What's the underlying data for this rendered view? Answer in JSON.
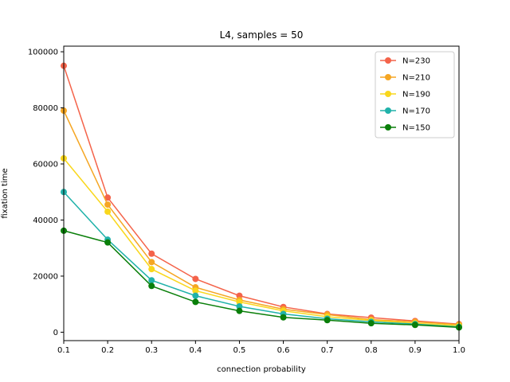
{
  "chart_data": {
    "type": "line",
    "title": "L4, samples = 50",
    "xlabel": "connection probability",
    "ylabel": "fixation time",
    "x": [
      0.1,
      0.2,
      0.3,
      0.4,
      0.5,
      0.6,
      0.7,
      0.8,
      0.9,
      1.0
    ],
    "xlim": [
      0.1,
      1.0
    ],
    "ylim": [
      -3000,
      102000
    ],
    "xticks": [
      "0.1",
      "0.2",
      "0.3",
      "0.4",
      "0.5",
      "0.6",
      "0.7",
      "0.8",
      "0.9",
      "1.0"
    ],
    "yticks": [
      "0",
      "20000",
      "40000",
      "60000",
      "80000",
      "100000"
    ],
    "ytick_values": [
      0,
      20000,
      40000,
      60000,
      80000,
      100000
    ],
    "grid": false,
    "legend_position": "top-right",
    "series": [
      {
        "name": "N=230",
        "color": "#f4634a",
        "values": [
          95000,
          48000,
          28000,
          19000,
          13000,
          9000,
          6500,
          5200,
          4000,
          2900
        ]
      },
      {
        "name": "N=210",
        "color": "#f5a623",
        "values": [
          79000,
          45500,
          25000,
          16000,
          11500,
          8200,
          6300,
          4500,
          3700,
          2700
        ]
      },
      {
        "name": "N=190",
        "color": "#f9d71c",
        "values": [
          62000,
          43000,
          22500,
          14800,
          10800,
          7600,
          5500,
          4200,
          3200,
          2300
        ]
      },
      {
        "name": "N=170",
        "color": "#20b2aa",
        "values": [
          50000,
          33000,
          18500,
          13000,
          9200,
          6500,
          4800,
          3700,
          2900,
          1900
        ]
      },
      {
        "name": "N=150",
        "color": "#0a7f0a",
        "values": [
          36200,
          32000,
          16500,
          10800,
          7600,
          5300,
          4300,
          3200,
          2600,
          1700
        ]
      }
    ]
  }
}
